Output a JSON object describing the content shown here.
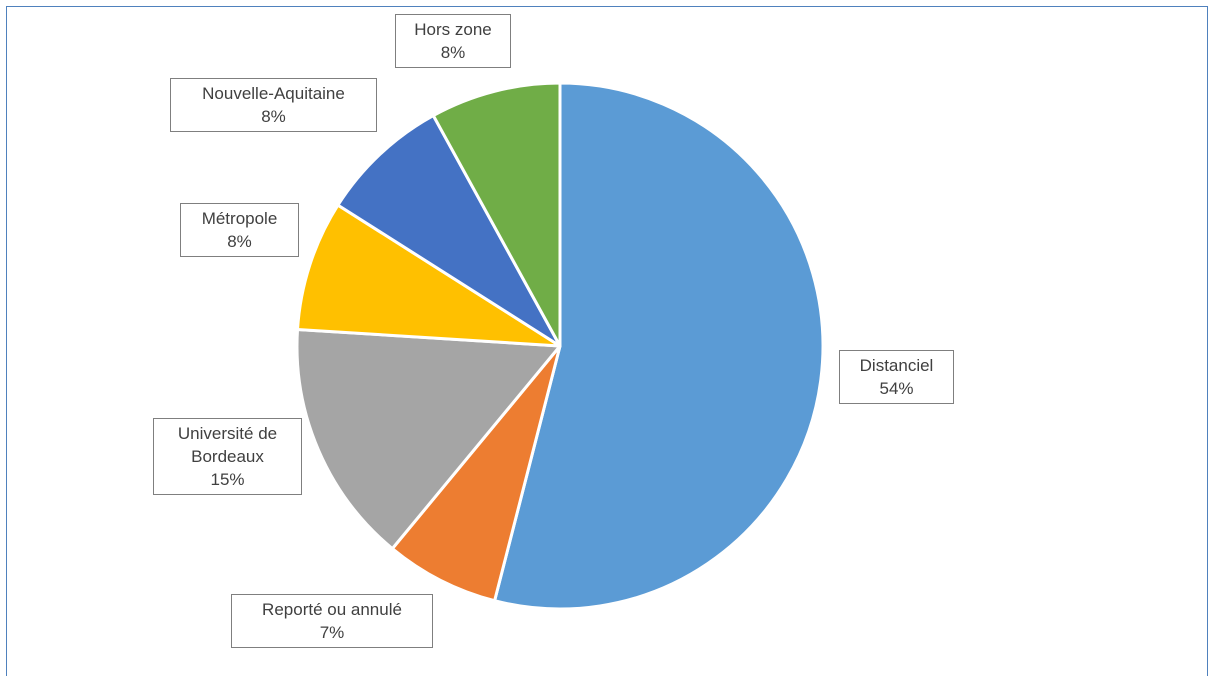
{
  "chart_data": {
    "type": "pie",
    "title": "",
    "slices": [
      {
        "label": "Distanciel",
        "value": 54,
        "pct_label": "54%",
        "color": "#5b9bd5"
      },
      {
        "label": "Reporté ou annulé",
        "value": 7,
        "pct_label": "7%",
        "color": "#ed7d31"
      },
      {
        "label": "Université de Bordeaux",
        "label_lines": [
          "Université de",
          "Bordeaux"
        ],
        "value": 15,
        "pct_label": "15%",
        "color": "#a5a5a5"
      },
      {
        "label": "Métropole",
        "value": 8,
        "pct_label": "8%",
        "color": "#ffc000"
      },
      {
        "label": "Nouvelle-Aquitaine",
        "value": 8,
        "pct_label": "8%",
        "color": "#4472c4"
      },
      {
        "label": "Hors zone",
        "value": 8,
        "pct_label": "8%",
        "color": "#70ad47"
      }
    ],
    "start": "12 o'clock",
    "direction": "clockwise",
    "legend": "none",
    "data_labels": "category name and percentage"
  }
}
